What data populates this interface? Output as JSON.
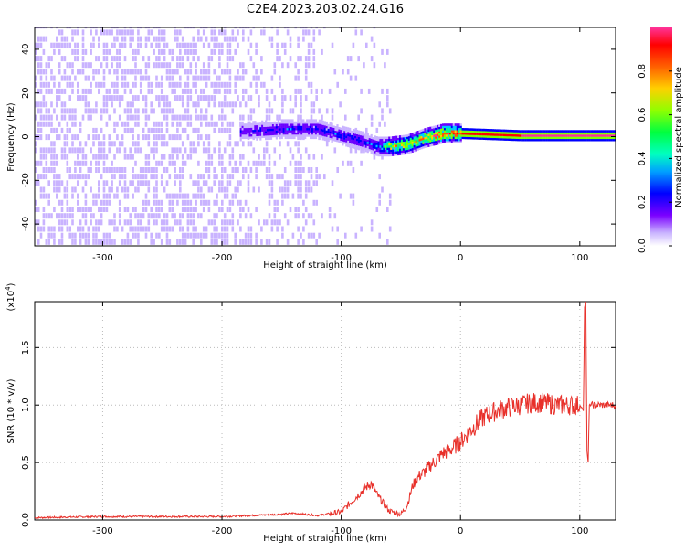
{
  "title": "C2E4.2023.203.02.24.G16",
  "colors": {
    "snr_line": "#e8302a",
    "axis": "#000000",
    "colormap": [
      "#ffffff",
      "#c9b3ff",
      "#6a00ff",
      "#0000ff",
      "#00c8ff",
      "#00ff80",
      "#7fff00",
      "#ffd000",
      "#ff5000",
      "#ff0000",
      "#ff2f9a"
    ]
  },
  "chart_data": [
    {
      "type": "heatmap",
      "title": "C2E4.2023.203.02.24.G16",
      "xlabel": "Height of straight line (km)",
      "ylabel": "Frequency (Hz)",
      "xlim": [
        -357,
        130
      ],
      "ylim": [
        -50,
        50
      ],
      "xticks": [
        -300,
        -200,
        -100,
        0,
        100
      ],
      "yticks": [
        -40,
        -20,
        0,
        20,
        40
      ],
      "colorbar": {
        "label": "Normalized spectral amplitude",
        "range": [
          0.0,
          1.0
        ],
        "ticks": [
          0.0,
          0.2,
          0.4,
          0.6,
          0.8
        ]
      },
      "ridge": {
        "description_points_x": [
          -180,
          -150,
          -120,
          -100,
          -80,
          -70,
          -60,
          -45,
          -30,
          -15,
          0,
          50,
          100,
          130
        ],
        "description_points_freq": [
          2,
          3,
          3,
          0,
          -3,
          -5,
          -5,
          -4,
          -1,
          1,
          1,
          0,
          0,
          0
        ],
        "amplitude": [
          0.25,
          0.3,
          0.3,
          0.3,
          0.3,
          0.35,
          0.7,
          0.75,
          0.8,
          0.85,
          0.9,
          0.95,
          0.95,
          0.95
        ]
      }
    },
    {
      "type": "line",
      "xlabel": "Height of straight line (km)",
      "ylabel": "SNR (10 * v/v)",
      "y_multiplier": "(x10",
      "y_multiplier_exp": "4",
      "y_multiplier_close": ")",
      "xlim": [
        -357,
        130
      ],
      "ylim": [
        0.0,
        1.9
      ],
      "xticks": [
        -300,
        -200,
        -100,
        0,
        100
      ],
      "yticks": [
        0.0,
        0.5,
        1.0,
        1.5
      ],
      "series": [
        {
          "name": "SNR",
          "x": [
            -357,
            -300,
            -250,
            -200,
            -150,
            -140,
            -120,
            -100,
            -80,
            -75,
            -70,
            -60,
            -50,
            -45,
            -40,
            -35,
            -30,
            -25,
            -20,
            -15,
            -10,
            0,
            10,
            20,
            30,
            40,
            50,
            60,
            70,
            80,
            90,
            100,
            103,
            104,
            105,
            106,
            107,
            108,
            110,
            120,
            130
          ],
          "y": [
            0.02,
            0.03,
            0.03,
            0.03,
            0.05,
            0.06,
            0.04,
            0.07,
            0.28,
            0.32,
            0.22,
            0.08,
            0.05,
            0.12,
            0.3,
            0.38,
            0.42,
            0.48,
            0.52,
            0.58,
            0.6,
            0.68,
            0.8,
            0.9,
            0.95,
            0.98,
            1.0,
            1.02,
            1.02,
            1.0,
            1.0,
            1.0,
            0.95,
            1.85,
            1.9,
            0.6,
            0.5,
            1.0,
            1.0,
            1.0,
            1.0
          ]
        }
      ]
    }
  ]
}
